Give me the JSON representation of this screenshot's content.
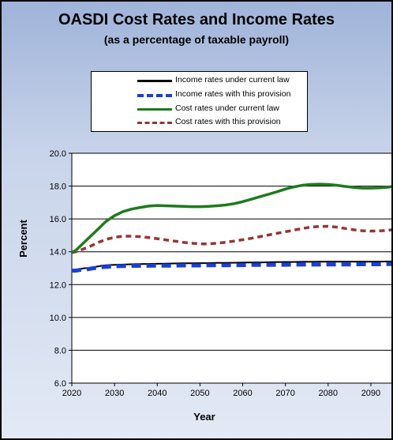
{
  "chart_data": {
    "type": "line",
    "title": "OASDI Cost Rates and Income Rates",
    "subtitle": "(as a percentage of taxable payroll)",
    "xlabel": "Year",
    "ylabel": "Percent",
    "xlim": [
      2020,
      2095
    ],
    "ylim": [
      6.0,
      20.0
    ],
    "xticks": [
      "2020",
      "2030",
      "2040",
      "2050",
      "2060",
      "2070",
      "2080",
      "2090"
    ],
    "yticks": [
      "6.0",
      "8.0",
      "10.0",
      "12.0",
      "14.0",
      "16.0",
      "18.0",
      "20.0"
    ],
    "grid": true,
    "legend_position": "top-center",
    "x": [
      2020,
      2021,
      2022,
      2023,
      2024,
      2025,
      2026,
      2027,
      2028,
      2030,
      2032,
      2034,
      2036,
      2038,
      2040,
      2042,
      2044,
      2046,
      2048,
      2050,
      2052,
      2054,
      2056,
      2058,
      2060,
      2062,
      2064,
      2066,
      2068,
      2070,
      2072,
      2074,
      2076,
      2078,
      2080,
      2082,
      2084,
      2086,
      2088,
      2090,
      2092,
      2094,
      2095
    ],
    "series": [
      {
        "name": "Income rates under current law",
        "color": "#000000",
        "style": "solid",
        "values": [
          12.9,
          12.9,
          12.95,
          13.0,
          13.0,
          13.05,
          13.1,
          13.15,
          13.18,
          13.2,
          13.22,
          13.24,
          13.25,
          13.26,
          13.27,
          13.28,
          13.29,
          13.3,
          13.3,
          13.31,
          13.31,
          13.32,
          13.32,
          13.33,
          13.34,
          13.35,
          13.35,
          13.36,
          13.37,
          13.38,
          13.38,
          13.39,
          13.39,
          13.4,
          13.4,
          13.4,
          13.4,
          13.4,
          13.4,
          13.4,
          13.4,
          13.41,
          13.41
        ]
      },
      {
        "name": "Income rates with this provision",
        "color": "#1a3fd6",
        "style": "dashed",
        "values": [
          12.85,
          12.85,
          12.9,
          12.92,
          12.95,
          13.0,
          13.03,
          13.06,
          13.08,
          13.12,
          13.13,
          13.14,
          13.15,
          13.15,
          13.16,
          13.16,
          13.16,
          13.17,
          13.17,
          13.17,
          13.18,
          13.18,
          13.18,
          13.19,
          13.19,
          13.2,
          13.2,
          13.2,
          13.21,
          13.21,
          13.22,
          13.22,
          13.22,
          13.22,
          13.23,
          13.23,
          13.23,
          13.23,
          13.24,
          13.24,
          13.24,
          13.25,
          13.25
        ]
      },
      {
        "name": "Cost rates under current law",
        "color": "#1e7a1e",
        "style": "solid",
        "values": [
          13.95,
          14.1,
          14.35,
          14.6,
          14.85,
          15.1,
          15.35,
          15.6,
          15.85,
          16.2,
          16.45,
          16.6,
          16.7,
          16.78,
          16.82,
          16.8,
          16.78,
          16.76,
          16.75,
          16.75,
          16.76,
          16.8,
          16.85,
          16.93,
          17.05,
          17.2,
          17.35,
          17.5,
          17.65,
          17.82,
          17.95,
          18.05,
          18.1,
          18.12,
          18.1,
          18.05,
          17.98,
          17.92,
          17.88,
          17.88,
          17.9,
          17.93,
          17.98
        ]
      },
      {
        "name": "Cost rates with this provision",
        "color": "#943634",
        "style": "dashed",
        "values": [
          13.95,
          14.0,
          14.1,
          14.2,
          14.3,
          14.42,
          14.55,
          14.65,
          14.75,
          14.88,
          14.95,
          14.95,
          14.92,
          14.86,
          14.8,
          14.72,
          14.65,
          14.58,
          14.52,
          14.48,
          14.48,
          14.52,
          14.58,
          14.65,
          14.73,
          14.82,
          14.92,
          15.02,
          15.12,
          15.22,
          15.32,
          15.42,
          15.5,
          15.54,
          15.55,
          15.5,
          15.42,
          15.34,
          15.28,
          15.26,
          15.27,
          15.3,
          15.35
        ]
      }
    ]
  }
}
